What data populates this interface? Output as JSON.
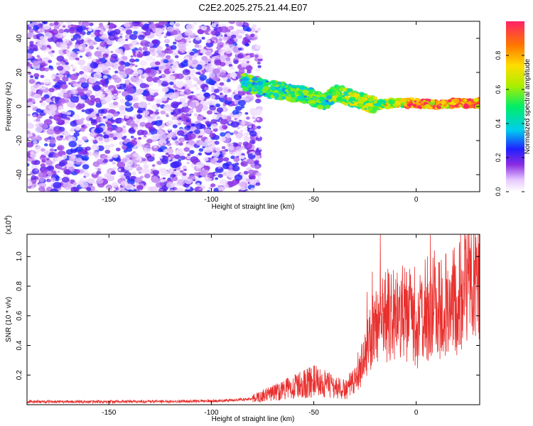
{
  "title": "C2E2.2025.275.21.44.E07",
  "chart_data": [
    {
      "type": "heatmap",
      "title": "C2E2.2025.275.21.44.E07",
      "xlabel": "Height of straight line (km)",
      "ylabel": "Frequency (Hz)",
      "xlim": [
        -190,
        31
      ],
      "ylim": [
        -50,
        50
      ],
      "xticks": [
        -150,
        -100,
        -50,
        0
      ],
      "xtick_labels": [
        "-150",
        "-100",
        "-50",
        "0"
      ],
      "yticks": [
        -40,
        -20,
        0,
        20,
        40
      ],
      "ytick_labels": [
        "-40",
        "-20",
        "0",
        "20",
        "40"
      ],
      "noise_region_x": [
        -190,
        -76
      ],
      "ridge": {
        "x": [
          -85,
          -75,
          -65,
          -55,
          -45,
          -38,
          -30,
          -20,
          -10,
          0,
          10,
          20,
          31
        ],
        "y": [
          15,
          11,
          9,
          7,
          3,
          8,
          4,
          1,
          2,
          2,
          1,
          2,
          2
        ]
      },
      "colorbar": {
        "label": "Normalized spectral amplitude",
        "range": [
          0,
          1
        ],
        "ticks": [
          0.0,
          0.2,
          0.4,
          0.6,
          0.8
        ],
        "tick_labels": [
          "0.0",
          "0.2",
          "0.4",
          "0.6",
          "0.8"
        ]
      }
    },
    {
      "type": "line",
      "xlabel": "Height of straight line (km)",
      "ylabel": "SNR (10 * v/v)",
      "yscale_label": "(x10",
      "yscale_exp": "4",
      "yscale_close": ")",
      "xlim": [
        -190,
        31
      ],
      "ylim": [
        0,
        1.15
      ],
      "xticks": [
        -150,
        -100,
        -50,
        0
      ],
      "xtick_labels": [
        "-150",
        "-100",
        "-50",
        "0"
      ],
      "yticks": [
        0.2,
        0.4,
        0.6,
        0.8,
        1.0
      ],
      "ytick_labels": [
        "0.2",
        "0.4",
        "0.6",
        "0.8",
        "1.0"
      ],
      "series": [
        {
          "color": "#e8302e",
          "x": [
            -190,
            -150,
            -100,
            -90,
            -80,
            -75,
            -70,
            -65,
            -60,
            -55,
            -50,
            -45,
            -40,
            -35,
            -30,
            -27,
            -24,
            -21,
            -18,
            -16,
            -14,
            -12,
            -10,
            -8,
            -5,
            -2,
            0,
            3,
            6,
            9,
            12,
            15,
            18,
            21,
            24,
            27,
            31
          ],
          "y": [
            0.02,
            0.02,
            0.025,
            0.03,
            0.04,
            0.06,
            0.08,
            0.1,
            0.12,
            0.14,
            0.16,
            0.14,
            0.12,
            0.1,
            0.15,
            0.25,
            0.4,
            0.5,
            0.55,
            0.6,
            0.6,
            0.58,
            0.6,
            0.62,
            0.6,
            0.55,
            0.5,
            0.58,
            0.62,
            0.65,
            0.65,
            0.67,
            0.7,
            0.72,
            0.75,
            0.82,
            0.88
          ]
        }
      ]
    }
  ]
}
